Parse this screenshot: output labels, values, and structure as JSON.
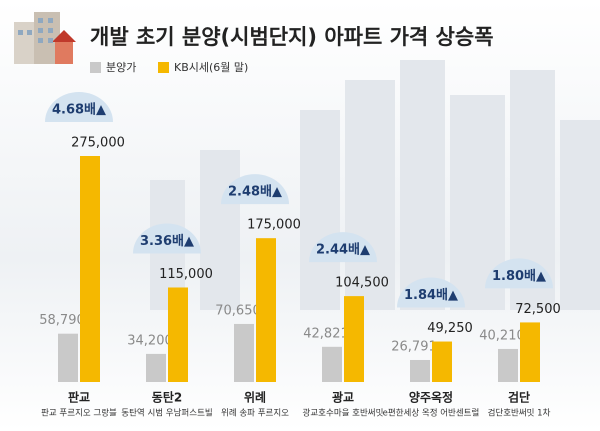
{
  "chart_data": {
    "type": "bar",
    "title": "개발 초기 분양(시범단지) 아파트 가격 상승폭",
    "categories": [
      "판교",
      "동탄2",
      "위례",
      "광교",
      "양주옥정",
      "검단"
    ],
    "subcategories": [
      "판교 푸르지오 그랑블",
      "동탄역 시범 우남퍼스트빌",
      "위례 송파 푸르지오",
      "광교호수마을 호반써밋",
      "e편한세상 옥정 어반센트럴",
      "검단호반써밋 1차"
    ],
    "series": [
      {
        "name": "분양가",
        "color": "#c9c9c9",
        "label_color": "#8a8a8a",
        "values": [
          58790,
          34200,
          70650,
          42821,
          26791,
          40210
        ],
        "value_labels": [
          "58,790",
          "34,200",
          "70,650",
          "42,821",
          "26,791",
          "40,210"
        ]
      },
      {
        "name": "KB시세(6월 말)",
        "color": "#f5b800",
        "label_color": "#222222",
        "values": [
          275000,
          115000,
          175000,
          104500,
          49250,
          72500
        ],
        "value_labels": [
          "275,000",
          "115,000",
          "175,000",
          "104,500",
          "49,250",
          "72,500"
        ]
      }
    ],
    "annotations": [
      "4.68배▲",
      "3.36배▲",
      "2.48배▲",
      "2.44배▲",
      "1.84배▲",
      "1.80배▲"
    ]
  }
}
